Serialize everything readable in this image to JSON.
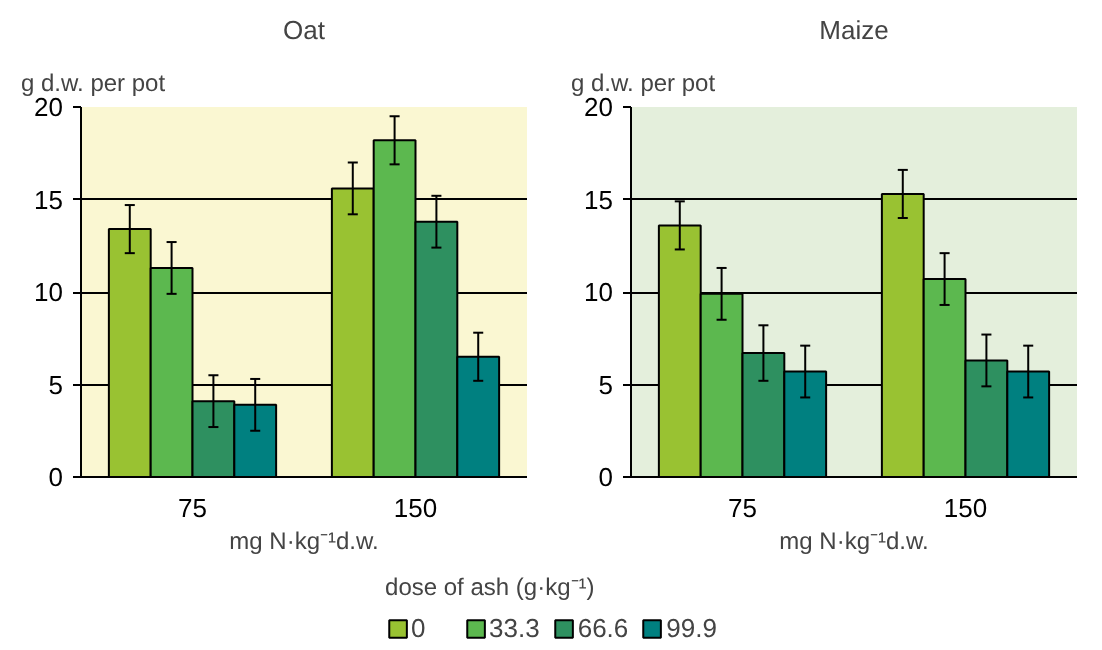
{
  "chart_data": [
    {
      "type": "bar",
      "title": "Oat",
      "ylabel": "g d.w. per pot",
      "xlabel": "mg N·kg⁻¹d.w.",
      "legend_title": "dose of ash (g·kg⁻¹)",
      "legend": "bottom",
      "categories": [
        "75",
        "150"
      ],
      "ylim": [
        0,
        20
      ],
      "yticks": [
        0,
        5,
        10,
        15,
        20
      ],
      "grid": "y",
      "series": [
        {
          "name": "0",
          "color": "#99c232",
          "values": [
            13.4,
            15.6
          ],
          "errors": [
            1.3,
            1.4
          ]
        },
        {
          "name": "33.3",
          "color": "#5cb84f",
          "values": [
            11.3,
            18.2
          ],
          "errors": [
            1.4,
            1.3
          ]
        },
        {
          "name": "66.6",
          "color": "#2e9060",
          "values": [
            4.1,
            13.8
          ],
          "errors": [
            1.4,
            1.4
          ]
        },
        {
          "name": "99.9",
          "color": "#008080",
          "values": [
            3.9,
            6.5
          ],
          "errors": [
            1.4,
            1.3
          ]
        }
      ]
    },
    {
      "type": "bar",
      "title": "Maize",
      "ylabel": "g d.w. per pot",
      "xlabel": "mg N·kg⁻¹d.w.",
      "categories": [
        "75",
        "150"
      ],
      "ylim": [
        0,
        20
      ],
      "yticks": [
        0,
        5,
        10,
        15,
        20
      ],
      "grid": "y",
      "series": [
        {
          "color": "#99c232",
          "values": [
            13.6,
            15.3
          ],
          "errors": [
            1.3,
            1.3
          ]
        },
        {
          "color": "#5cb84f",
          "values": [
            9.9,
            10.7
          ],
          "errors": [
            1.4,
            1.4
          ]
        },
        {
          "color": "#2e9060",
          "values": [
            6.7,
            6.3
          ],
          "errors": [
            1.5,
            1.4
          ]
        },
        {
          "color": "#008080",
          "values": [
            5.7,
            5.7
          ],
          "errors": [
            1.4,
            1.4
          ]
        }
      ]
    }
  ]
}
